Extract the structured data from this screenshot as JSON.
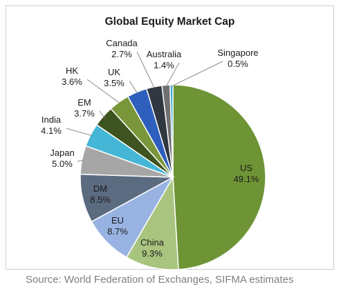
{
  "chart_data": {
    "type": "pie",
    "title": "Global Equity Market Cap",
    "slices": [
      {
        "name": "US",
        "value": 49.1,
        "label": "49.1%",
        "color": "#6e9436"
      },
      {
        "name": "China",
        "value": 9.3,
        "label": "9.3%",
        "color": "#a9c47f"
      },
      {
        "name": "EU",
        "value": 8.7,
        "label": "8.7%",
        "color": "#98b3e1"
      },
      {
        "name": "DM",
        "value": 8.5,
        "label": "8.5%",
        "color": "#5b6b80"
      },
      {
        "name": "Japan",
        "value": 5.0,
        "label": "5.0%",
        "color": "#a6a6a6"
      },
      {
        "name": "India",
        "value": 4.1,
        "label": "4.1%",
        "color": "#45b6d6"
      },
      {
        "name": "EM",
        "value": 3.7,
        "label": "3.7%",
        "color": "#3e5420"
      },
      {
        "name": "HK",
        "value": 3.6,
        "label": "3.6%",
        "color": "#79973a"
      },
      {
        "name": "UK",
        "value": 3.5,
        "label": "3.5%",
        "color": "#2e5fbd"
      },
      {
        "name": "Canada",
        "value": 2.7,
        "label": "2.7%",
        "color": "#303740"
      },
      {
        "name": "Australia",
        "value": 1.4,
        "label": "1.4%",
        "color": "#707070"
      },
      {
        "name": "Singapore",
        "value": 0.5,
        "label": "0.5%",
        "color": "#3aa9cf"
      }
    ]
  },
  "source": "Source: World Federation of Exchanges, SIFMA estimates"
}
